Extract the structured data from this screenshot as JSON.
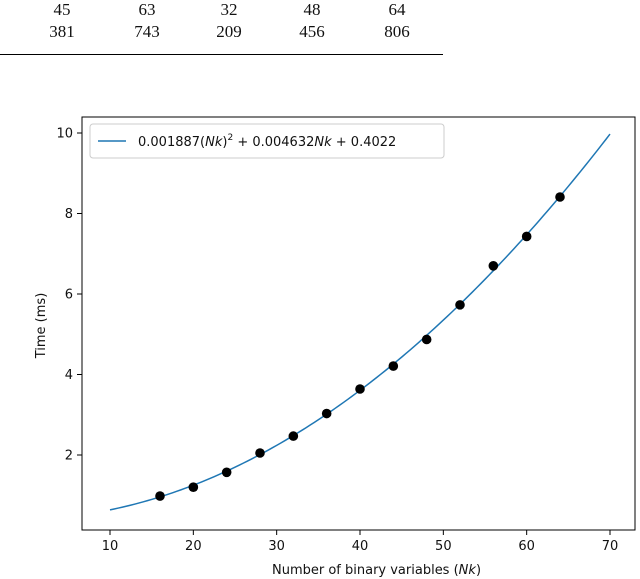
{
  "table_fragment": {
    "rows": [
      [
        "45",
        "63",
        "32",
        "48",
        "64"
      ],
      [
        "381",
        "743",
        "209",
        "456",
        "806"
      ]
    ]
  },
  "chart_data": {
    "type": "scatter",
    "title": "",
    "xlabel_prefix": "Number of binary variables (",
    "xlabel_var": "Nk",
    "xlabel_suffix": ")",
    "ylabel": "Time (ms)",
    "xlim": [
      10,
      70
    ],
    "ylim": [
      0.2,
      10.25
    ],
    "x_ticks": [
      10,
      20,
      30,
      40,
      50,
      60,
      70
    ],
    "y_ticks": [
      2,
      4,
      6,
      8,
      10
    ],
    "grid": false,
    "legend_position": "upper-left",
    "series": [
      {
        "kind": "points",
        "color": "#000000",
        "x": [
          16,
          20,
          24,
          28,
          32,
          36,
          40,
          44,
          48,
          52,
          56,
          60,
          64
        ],
        "y": [
          0.98,
          1.2,
          1.57,
          2.05,
          2.47,
          3.03,
          3.64,
          4.21,
          4.87,
          5.73,
          6.7,
          7.43,
          8.41
        ]
      },
      {
        "kind": "fit",
        "color": "#1f77b4",
        "coefficients": [
          0.001887,
          0.004632,
          0.4022
        ],
        "x_range": [
          10,
          70
        ]
      }
    ],
    "legend": {
      "entries": [
        {
          "parts": [
            "0.001887(",
            "Nk",
            ")",
            "2",
            " + 0.004632",
            "Nk",
            " + 0.4022"
          ],
          "color": "#1f77b4"
        }
      ]
    }
  }
}
